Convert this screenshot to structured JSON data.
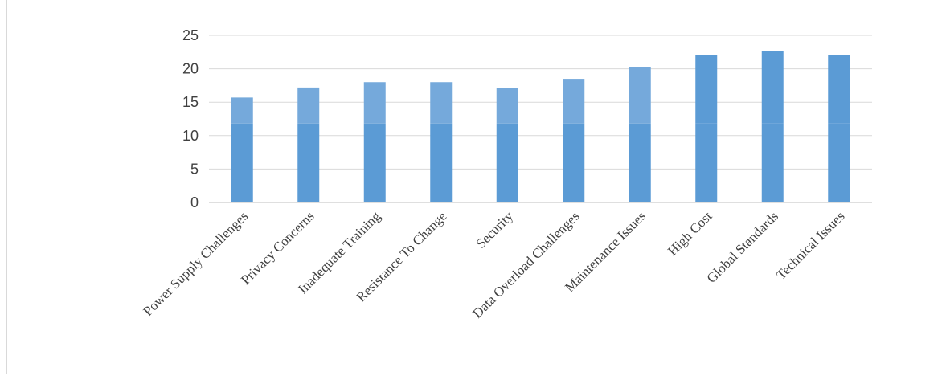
{
  "chart_data": {
    "type": "bar",
    "title": "",
    "xlabel": "",
    "ylabel": "",
    "categories": [
      "Power Supply Challenges",
      "Privacy Concerns",
      "Inadequate Training",
      "Resistance To Change",
      "Security",
      "Data Overload Challenges",
      "Maintenance Issues",
      "High Cost",
      "Global Standards",
      "Technical Issues"
    ],
    "values": [
      15.7,
      17.2,
      18.0,
      18.0,
      17.1,
      18.5,
      20.3,
      22.0,
      22.7,
      22.1
    ],
    "ylim": [
      0,
      25
    ],
    "yticks": [
      "0",
      "5",
      "10",
      "15",
      "20",
      "25"
    ],
    "grid": true,
    "legend": "none",
    "colors": {
      "bar": "#5b9bd5",
      "bar_light": "#75a9db",
      "grid": "#d9d9d9",
      "axis": "#bfbfbf",
      "text": "#404040"
    }
  }
}
